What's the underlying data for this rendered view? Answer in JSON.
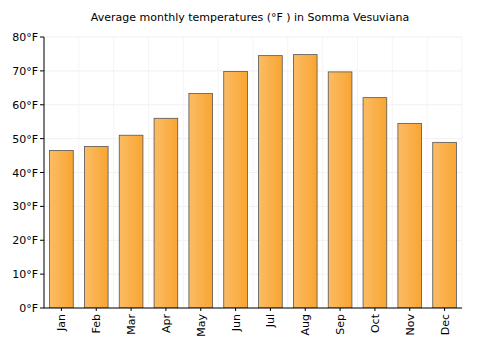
{
  "chart_data": {
    "type": "bar",
    "title": "Average monthly temperatures (°F ) in Somma Vesuviana",
    "categories": [
      "Jan",
      "Feb",
      "Mar",
      "Apr",
      "May",
      "Jun",
      "Jul",
      "Aug",
      "Sep",
      "Oct",
      "Nov",
      "Dec"
    ],
    "values": [
      46.5,
      47.7,
      51,
      56,
      63.3,
      69.8,
      74.5,
      74.8,
      69.7,
      62.1,
      54.5,
      48.9
    ],
    "color": "#f9a531",
    "ylim": [
      0,
      80
    ],
    "yticks": [
      {
        "value": 0,
        "label": "0°F"
      },
      {
        "value": 10,
        "label": "10°F"
      },
      {
        "value": 20,
        "label": "20°F"
      },
      {
        "value": 30,
        "label": "30°F"
      },
      {
        "value": 40,
        "label": "40°F"
      },
      {
        "value": 50,
        "label": "50°F"
      },
      {
        "value": 60,
        "label": "60°F"
      },
      {
        "value": 70,
        "label": "70°F"
      },
      {
        "value": 80,
        "label": "80°F"
      }
    ],
    "grid": true
  }
}
